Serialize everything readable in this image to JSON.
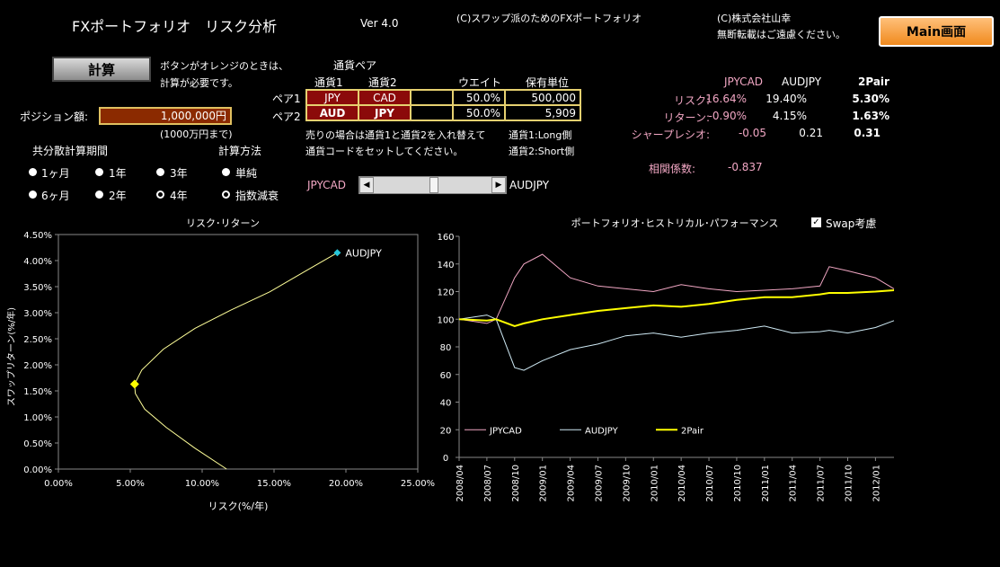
{
  "header": {
    "title": "FXポートフォリオ　リスク分析",
    "version": "Ver 4.0",
    "copyright1": "(C)スワップ派のためのFXポートフォリオ",
    "copyright2": "(C)株式会社山幸",
    "notice": "無断転載はご遠慮ください。",
    "main_button": "Main画面"
  },
  "calc": {
    "button": "計算",
    "note1": "ボタンがオレンジのときは、",
    "note2": "計算が必要です。"
  },
  "position": {
    "label": "ポジション額:",
    "value": "1,000,000円",
    "note": "(1000万円まで)"
  },
  "pairs": {
    "title": "通貨ペア",
    "headers": {
      "cur1": "通貨1",
      "cur2": "通貨2",
      "weight": "ウエイト",
      "units": "保有単位"
    },
    "rows": [
      {
        "label": "ペア1",
        "cur1": "JPY",
        "cur2": "CAD",
        "weight": "50.0%",
        "units": "500,000"
      },
      {
        "label": "ペア2",
        "cur1": "AUD",
        "cur2": "JPY",
        "weight": "50.0%",
        "units": "5,909"
      }
    ],
    "note1": "売りの場合は通貨1と通貨2を入れ替えて",
    "note2": "通貨コードをセットしてください。",
    "note3": "通貨1:Long側",
    "note4": "通貨2:Short側"
  },
  "stats": {
    "headers": [
      "JPYCAD",
      "AUDJPY",
      "2Pair"
    ],
    "rows": [
      {
        "label": "リスク:",
        "values": [
          "16.64%",
          "19.40%",
          "5.30%"
        ]
      },
      {
        "label": "リターン:",
        "values": [
          "-0.90%",
          "4.15%",
          "1.63%"
        ]
      },
      {
        "label": "シャープレシオ:",
        "values": [
          "-0.05",
          "0.21",
          "0.31"
        ]
      }
    ],
    "corr_label": "相関係数:",
    "corr_value": "-0.837"
  },
  "period": {
    "title": "共分散計算期間",
    "options": [
      "1ヶ月",
      "1年",
      "3年",
      "6ヶ月",
      "2年",
      "4年"
    ],
    "selected": "4年"
  },
  "method": {
    "title": "計算方法",
    "options": [
      "単純",
      "指数減衰"
    ],
    "selected": "指数減衰"
  },
  "slider": {
    "left": "JPYCAD",
    "right": "AUDJPY",
    "left_arrow": "◀",
    "right_arrow": "▶"
  },
  "swap": {
    "label": "Swap考慮",
    "checked": true,
    "mark": "✓"
  },
  "colors": {
    "jpycad": "#f2a7c4",
    "audjpy": "#cfeaf5",
    "pair2": "#ffff00",
    "frontier": "#ffff99",
    "cur_cell": "#8b0a0a",
    "accent_orange": "#f08a1e"
  },
  "chart_data": [
    {
      "type": "scatter",
      "title": "リスク･リターン",
      "xlabel": "リスク(%/年)",
      "ylabel": "スワップリターン(%/年)",
      "xlim": [
        0,
        25
      ],
      "ylim": [
        0,
        4.5
      ],
      "x_ticks": [
        "0.00%",
        "5.00%",
        "10.00%",
        "15.00%",
        "20.00%",
        "25.00%"
      ],
      "y_ticks": [
        "0.00%",
        "0.50%",
        "1.00%",
        "1.50%",
        "2.00%",
        "2.50%",
        "3.00%",
        "3.50%",
        "4.00%",
        "4.50%"
      ],
      "frontier": {
        "x": [
          11.7,
          9.5,
          7.5,
          6.0,
          5.35,
          5.3,
          5.8,
          7.3,
          9.5,
          12.0,
          14.7,
          17.2,
          19.4
        ],
        "y": [
          0.0,
          0.4,
          0.8,
          1.15,
          1.45,
          1.63,
          1.9,
          2.3,
          2.7,
          3.05,
          3.4,
          3.8,
          4.15
        ]
      },
      "points": [
        {
          "name": "AUDJPY",
          "x": 19.4,
          "y": 4.15
        },
        {
          "name": "2Pair",
          "x": 5.3,
          "y": 1.63
        }
      ]
    },
    {
      "type": "line",
      "title": "ポートフォリオ･ヒストリカル･パフォーマンス",
      "ylim": [
        0,
        160
      ],
      "y_ticks": [
        "0",
        "20",
        "40",
        "60",
        "80",
        "100",
        "120",
        "140",
        "160"
      ],
      "x_ticks": [
        "2008/04",
        "2008/07",
        "2008/10",
        "2009/01",
        "2009/04",
        "2009/07",
        "2009/10",
        "2010/01",
        "2010/04",
        "2010/07",
        "2010/10",
        "2011/01",
        "2011/04",
        "2011/07",
        "2011/10",
        "2012/01"
      ],
      "x": [
        "2008/04",
        "2008/07",
        "2008/08",
        "2008/10",
        "2008/11",
        "2009/01",
        "2009/04",
        "2009/07",
        "2009/10",
        "2010/01",
        "2010/04",
        "2010/07",
        "2010/10",
        "2011/01",
        "2011/04",
        "2011/07",
        "2011/08",
        "2011/10",
        "2012/01",
        "2012/03"
      ],
      "series": [
        {
          "name": "JPYCAD",
          "values": [
            100,
            97,
            100,
            130,
            140,
            147,
            130,
            124,
            122,
            120,
            125,
            122,
            120,
            121,
            122,
            124,
            138,
            135,
            130,
            122
          ]
        },
        {
          "name": "AUDJPY",
          "values": [
            100,
            103,
            100,
            65,
            63,
            70,
            78,
            82,
            88,
            90,
            87,
            90,
            92,
            95,
            90,
            91,
            92,
            90,
            94,
            99
          ]
        },
        {
          "name": "2Pair",
          "values": [
            100,
            99,
            100,
            95,
            97,
            100,
            103,
            106,
            108,
            110,
            109,
            111,
            114,
            116,
            116,
            118,
            119,
            119,
            120,
            121
          ]
        }
      ]
    }
  ]
}
